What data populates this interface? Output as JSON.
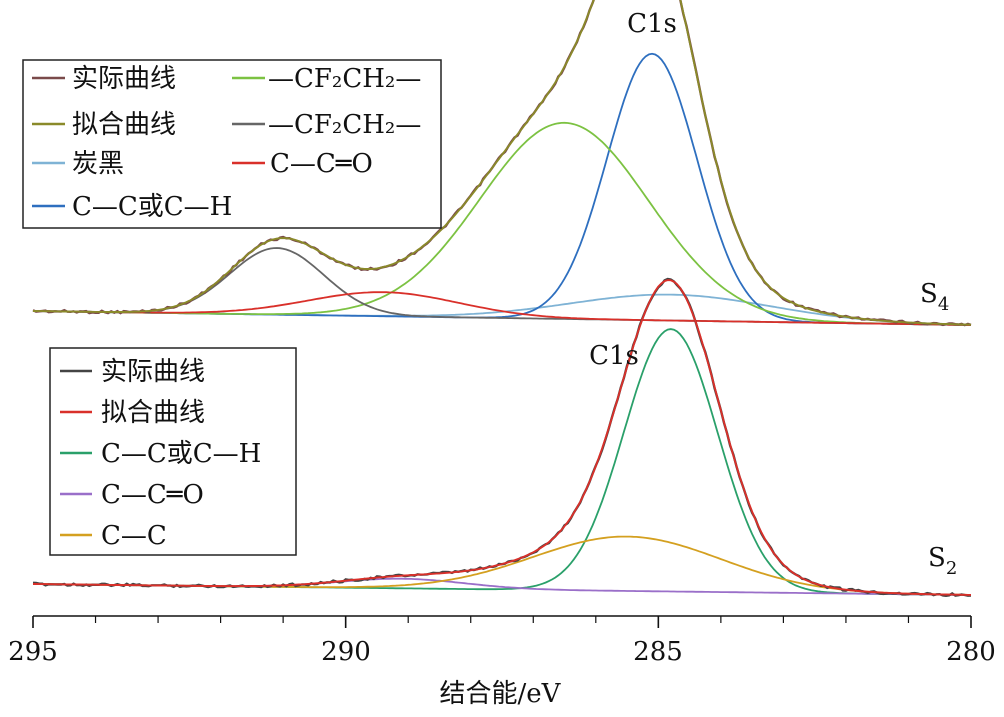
{
  "chart_data": {
    "type": "line",
    "xlabel": "结合能/eV",
    "xlim": [
      295,
      280
    ],
    "x_ticks": [
      "295",
      "290",
      "285",
      "280"
    ],
    "grid": false,
    "panels": [
      {
        "name": "S",
        "sub": "4",
        "peak_label": "C1s",
        "legend_position": "top-left",
        "series": [
          {
            "name": "实际曲线",
            "color": "#7a4a4a",
            "role": "measured"
          },
          {
            "name": "拟合曲线",
            "color": "#8a8a2a",
            "role": "fit"
          },
          {
            "name": "炭黑",
            "color": "#7fb3d5",
            "center": 284.8,
            "height": 0.07,
            "width": 1.6
          },
          {
            "name": "C—C或C—H",
            "color": "#2e6fbf",
            "center": 285.1,
            "height": 0.72,
            "width": 0.72
          },
          {
            "name": "—CF₂CH₂—",
            "color": "#7cc242",
            "center": 286.5,
            "height": 0.53,
            "width": 1.35
          },
          {
            "name": "—CF₂CH₂—",
            "color": "#666666",
            "center": 291.1,
            "height": 0.18,
            "width": 0.75
          },
          {
            "name": "C—C═O",
            "color": "#d9302a",
            "center": 289.4,
            "height": 0.065,
            "width": 1.2
          }
        ]
      },
      {
        "name": "S",
        "sub": "2",
        "peak_label": "C1s",
        "legend_position": "top-left",
        "series": [
          {
            "name": "实际曲线",
            "color": "#444444",
            "role": "measured"
          },
          {
            "name": "拟合曲线",
            "color": "#d9302a",
            "role": "fit"
          },
          {
            "name": "C—C或C—H",
            "color": "#2aa06a",
            "center": 284.8,
            "height": 0.82,
            "width": 0.75
          },
          {
            "name": "C—C═O",
            "color": "#9a6fc9",
            "center": 289.1,
            "height": 0.03,
            "width": 1.0
          },
          {
            "name": "C—C",
            "color": "#d4a020",
            "center": 285.5,
            "height": 0.17,
            "width": 1.5
          }
        ]
      }
    ]
  }
}
